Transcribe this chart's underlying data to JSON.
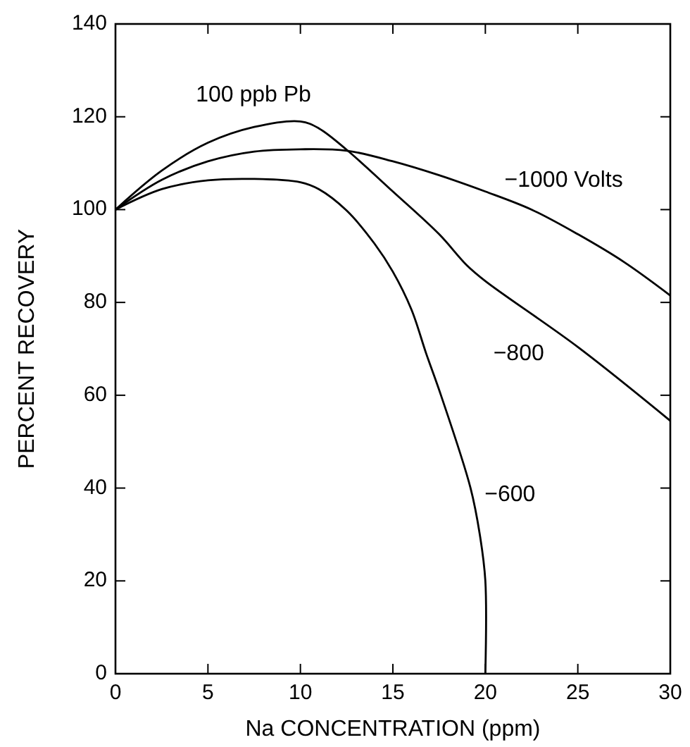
{
  "chart_data": {
    "type": "line",
    "xlabel": "Na CONCENTRATION (ppm)",
    "ylabel": "PERCENT RECOVERY",
    "annotations": [
      "100 ppb Pb"
    ],
    "xlim": [
      0,
      30
    ],
    "xticks": [
      0,
      5,
      10,
      15,
      20,
      25,
      30
    ],
    "ylim": [
      0,
      140
    ],
    "yticks": [
      0,
      20,
      40,
      60,
      80,
      100,
      120,
      140
    ],
    "marker": "none",
    "line_style": "solid",
    "series": [
      {
        "name": "−1000 Volts",
        "color": "#000000",
        "x": [
          0,
          2.5,
          5,
          7.5,
          10,
          12.5,
          15,
          17.5,
          20,
          22.5,
          25,
          27.5,
          30
        ],
        "values": [
          100,
          106.4,
          110.4,
          112.5,
          113,
          112.7,
          110.4,
          107.4,
          103.9,
          100,
          94.7,
          88.7,
          81.5
        ]
      },
      {
        "name": "−800",
        "color": "#000000",
        "x": [
          0,
          2.5,
          5,
          7.5,
          10,
          11,
          12.5,
          15,
          17.5,
          19,
          20,
          25,
          30
        ],
        "values": [
          100,
          108.4,
          114.4,
          117.8,
          119,
          117.5,
          112.9,
          103.9,
          94.7,
          88,
          84.6,
          70.4,
          54.5
        ]
      },
      {
        "name": "−600",
        "color": "#000000",
        "x": [
          0,
          2.5,
          5,
          7.5,
          10,
          11,
          12.5,
          14,
          15,
          16,
          16.8,
          17.6,
          19.2,
          19.7,
          20,
          20
        ],
        "values": [
          100,
          104.4,
          106.3,
          106.6,
          105.9,
          104.4,
          99.8,
          92.7,
          86.6,
          78.5,
          69,
          60,
          40,
          30,
          20,
          0
        ]
      }
    ]
  }
}
